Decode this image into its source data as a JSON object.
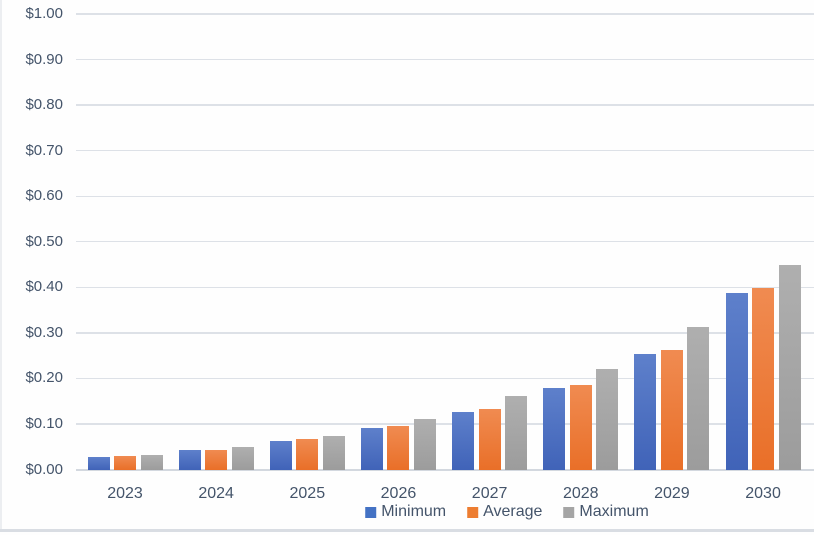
{
  "chart_data": {
    "type": "bar",
    "title": "",
    "categories": [
      "2023",
      "2024",
      "2025",
      "2026",
      "2027",
      "2028",
      "2029",
      "2030"
    ],
    "series": [
      {
        "name": "Minimum",
        "color": "#4472C4",
        "gradient_top": "#5E80CB",
        "gradient_bottom": "#4063B8",
        "values": [
          0.028,
          0.042,
          0.063,
          0.092,
          0.127,
          0.18,
          0.254,
          0.387
        ]
      },
      {
        "name": "Average",
        "color": "#ED7D31",
        "gradient_top": "#F08B51",
        "gradient_bottom": "#E96F28",
        "values": [
          0.03,
          0.044,
          0.066,
          0.096,
          0.132,
          0.186,
          0.263,
          0.398
        ]
      },
      {
        "name": "Maximum",
        "color": "#A5A5A5",
        "gradient_top": "#AFAFAF",
        "gradient_bottom": "#9C9C9C",
        "values": [
          0.032,
          0.05,
          0.074,
          0.112,
          0.162,
          0.221,
          0.313,
          0.45
        ]
      }
    ],
    "y_ticks": [
      {
        "label": "$0.00",
        "value": 0.0
      },
      {
        "label": "$0.10",
        "value": 0.1
      },
      {
        "label": "$0.20",
        "value": 0.2
      },
      {
        "label": "$0.30",
        "value": 0.3
      },
      {
        "label": "$0.40",
        "value": 0.4
      },
      {
        "label": "$0.50",
        "value": 0.5
      },
      {
        "label": "$0.60",
        "value": 0.6
      },
      {
        "label": "$0.70",
        "value": 0.7
      },
      {
        "label": "$0.80",
        "value": 0.8
      },
      {
        "label": "$0.90",
        "value": 0.9
      },
      {
        "label": "$1.00",
        "value": 1.0
      }
    ],
    "ylim": [
      0.0,
      1.0
    ],
    "xlabel": "",
    "ylabel": "",
    "grid": true,
    "legend_position": "bottom-center",
    "colors": {
      "text": "#44546A",
      "gridline": "#DDE1E7",
      "axis_line": "#D3D8DF",
      "background": "#FEFEFE",
      "left_border": "#ECEEF1",
      "bottom_border": "#D9DDE3"
    }
  }
}
